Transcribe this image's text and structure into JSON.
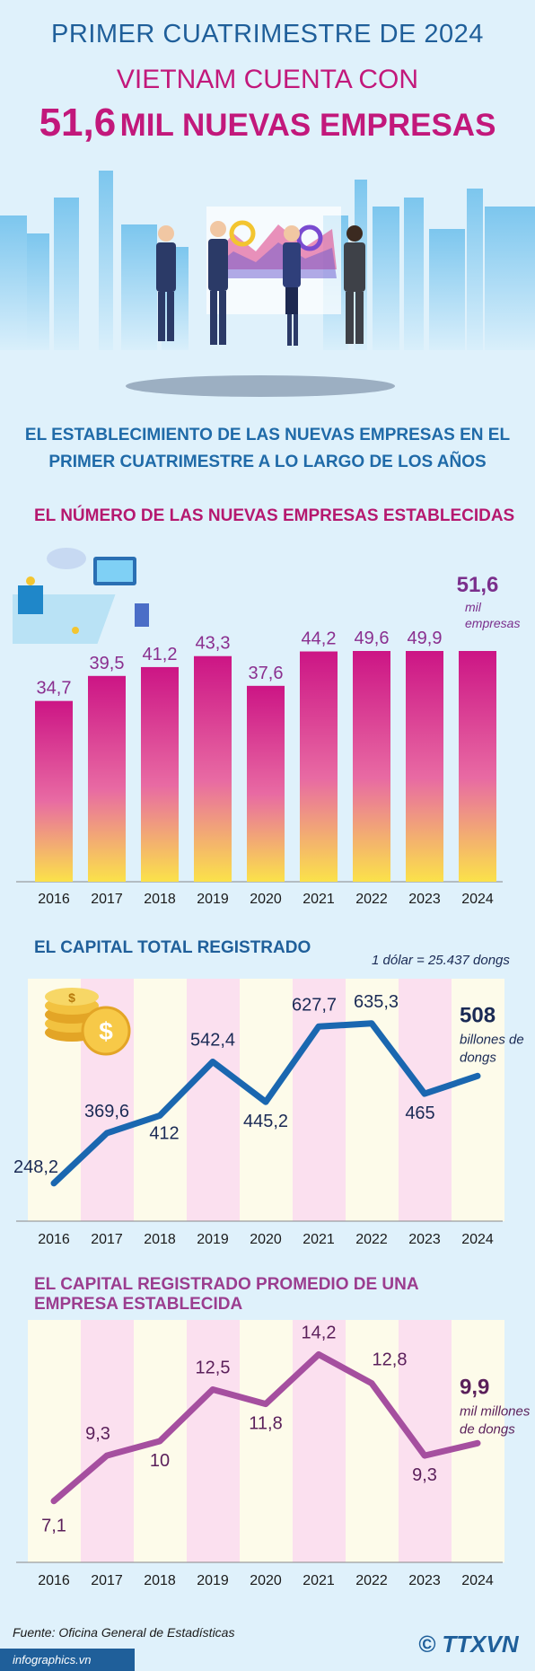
{
  "header": {
    "line1": "PRIMER CUATRIMESTRE DE 2024",
    "line2": "VIETNAM CUENTA CON",
    "line3_number": "51,6",
    "line3_text": "MIL NUEVAS EMPRESAS"
  },
  "subtitle": {
    "line1": "EL ESTABLECIMIENTO DE LAS NUEVAS EMPRESAS EN EL",
    "line2": "PRIMER CUATRIMESTRE A LO LARGO DE LOS AÑOS"
  },
  "colors": {
    "blue": "#1f5f9a",
    "magenta": "#c2187b",
    "purple": "#9b3d8f",
    "line_blue": "#1a67b0",
    "line_purple": "#a54f9f"
  },
  "chart_data": [
    {
      "type": "bar",
      "title": "EL NÚMERO DE LAS NUEVAS EMPRESAS ESTABLECIDAS",
      "categories": [
        "2016",
        "2017",
        "2018",
        "2019",
        "2020",
        "2021",
        "2022",
        "2023",
        "2024"
      ],
      "values": [
        34.7,
        39.5,
        41.2,
        43.3,
        37.6,
        44.2,
        49.6,
        49.9,
        51.6
      ],
      "labels": [
        "34,7",
        "39,5",
        "41,2",
        "43,3",
        "37,6",
        "44,2",
        "49,6",
        "49,9",
        "51,6"
      ],
      "highlight_unit": [
        "mil",
        "empresas"
      ],
      "ylim": [
        0,
        60
      ]
    },
    {
      "type": "line",
      "title": "EL CAPITAL TOTAL REGISTRADO",
      "note": "1 dólar = 25.437 dongs",
      "categories": [
        "2016",
        "2017",
        "2018",
        "2019",
        "2020",
        "2021",
        "2022",
        "2023",
        "2024"
      ],
      "values": [
        248.2,
        369.6,
        412,
        542.4,
        445.2,
        627.7,
        635.3,
        465,
        508
      ],
      "labels": [
        "248,2",
        "369,6",
        "412",
        "542,4",
        "445,2",
        "627,7",
        "635,3",
        "465",
        "508"
      ],
      "highlight_unit": [
        "billones de",
        "dongs"
      ],
      "ylim": [
        200,
        700
      ]
    },
    {
      "type": "line",
      "title_line1": "EL CAPITAL REGISTRADO PROMEDIO DE UNA",
      "title_line2": "EMPRESA ESTABLECIDA",
      "categories": [
        "2016",
        "2017",
        "2018",
        "2019",
        "2020",
        "2021",
        "2022",
        "2023",
        "2024"
      ],
      "values": [
        7.1,
        9.3,
        10,
        12.5,
        11.8,
        14.2,
        12.8,
        9.3,
        9.9
      ],
      "labels": [
        "7,1",
        "9,3",
        "10",
        "12,5",
        "11,8",
        "14,2",
        "12,8",
        "9,3",
        "9,9"
      ],
      "highlight_unit": [
        "mil millones",
        "de dongs"
      ],
      "ylim": [
        5,
        15
      ]
    }
  ],
  "footer": {
    "source": "Fuente: Oficina General de Estadísticas",
    "site": "infographics.vn",
    "logo": "© TTXVN"
  }
}
